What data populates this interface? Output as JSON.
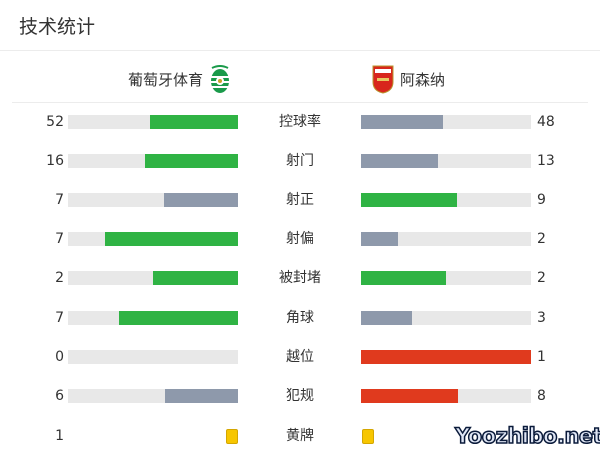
{
  "title": "技术统计",
  "home": {
    "name": "葡萄牙体育",
    "logo": "sporting-cp-crest"
  },
  "away": {
    "name": "阿森纳",
    "logo": "arsenal-crest"
  },
  "colors": {
    "green": "#2fb344",
    "gray": "#8e99ab",
    "red": "#e03a1e",
    "track": "#e8e8e8",
    "yellow": "#f7c600"
  },
  "stats": [
    {
      "label": "控球率",
      "home": "52",
      "away": "48",
      "home_frac": 0.52,
      "away_frac": 0.48,
      "home_color": "#2fb344",
      "away_color": "#8e99ab"
    },
    {
      "label": "射门",
      "home": "16",
      "away": "13",
      "home_frac": 0.55,
      "away_frac": 0.45,
      "home_color": "#2fb344",
      "away_color": "#8e99ab"
    },
    {
      "label": "射正",
      "home": "7",
      "away": "9",
      "home_frac": 0.4375,
      "away_frac": 0.5625,
      "home_color": "#8e99ab",
      "away_color": "#2fb344"
    },
    {
      "label": "射偏",
      "home": "7",
      "away": "2",
      "home_frac": 0.78,
      "away_frac": 0.22,
      "home_color": "#2fb344",
      "away_color": "#8e99ab"
    },
    {
      "label": "被封堵",
      "home": "2",
      "away": "2",
      "home_frac": 0.5,
      "away_frac": 0.5,
      "home_color": "#2fb344",
      "away_color": "#2fb344"
    },
    {
      "label": "角球",
      "home": "7",
      "away": "3",
      "home_frac": 0.7,
      "away_frac": 0.3,
      "home_color": "#2fb344",
      "away_color": "#8e99ab"
    },
    {
      "label": "越位",
      "home": "0",
      "away": "1",
      "home_frac": 0,
      "away_frac": 1,
      "home_color": "#8e99ab",
      "away_color": "#e03a1e"
    },
    {
      "label": "犯规",
      "home": "6",
      "away": "8",
      "home_frac": 0.43,
      "away_frac": 0.57,
      "home_color": "#8e99ab",
      "away_color": "#e03a1e"
    }
  ],
  "yellow": {
    "label": "黄牌",
    "home": "1"
  },
  "watermark": "Yoozhibo.net"
}
